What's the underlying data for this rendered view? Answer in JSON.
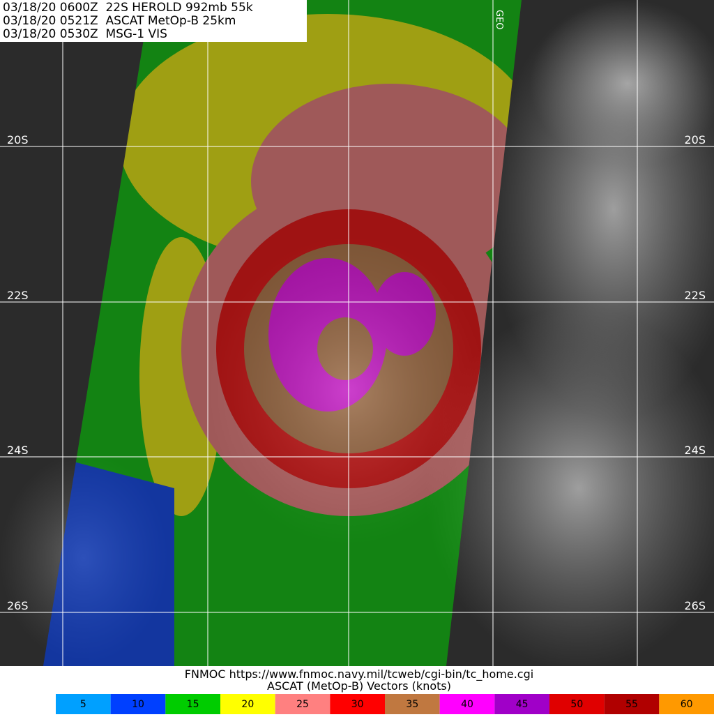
{
  "header": {
    "lines": [
      "03/18/20 0600Z  22S HEROLD 992mb 55k",
      "03/18/20 0521Z  ASCAT MetOp-B 25km",
      "03/18/20 0530Z  MSG-1 VIS"
    ]
  },
  "corner_tag": "GEO",
  "lat_labels": [
    "20S",
    "22S",
    "24S",
    "26S"
  ],
  "footer": {
    "source": "FNMOC https://www.fnmoc.navy.mil/tcweb/cgi-bin/tc_home.cgi",
    "caption": "ASCAT (MetOp-B) Vectors (knots)"
  },
  "legend": [
    {
      "label": "5",
      "color": "#00a0ff"
    },
    {
      "label": "10",
      "color": "#0040ff"
    },
    {
      "label": "15",
      "color": "#00cc00"
    },
    {
      "label": "20",
      "color": "#ffff00"
    },
    {
      "label": "25",
      "color": "#ff8080"
    },
    {
      "label": "30",
      "color": "#ff0000"
    },
    {
      "label": "35",
      "color": "#c07840"
    },
    {
      "label": "40",
      "color": "#ff00ff"
    },
    {
      "label": "45",
      "color": "#a000c8"
    },
    {
      "label": "50",
      "color": "#e00000"
    },
    {
      "label": "55",
      "color": "#b00000"
    },
    {
      "label": "60",
      "color": "#ff9900"
    }
  ]
}
